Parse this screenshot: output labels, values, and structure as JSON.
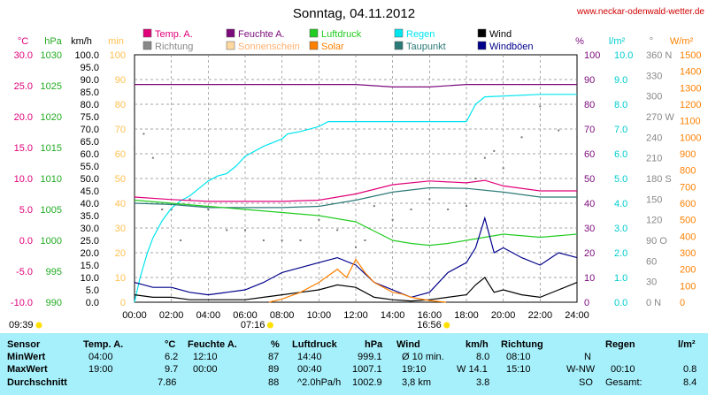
{
  "header": {
    "title": "Sonntag, 04.11.2012",
    "site": "www.neckar-odenwald-wetter.de"
  },
  "legend": [
    {
      "label": "Temp. A.",
      "color": "#e0007a"
    },
    {
      "label": "Feuchte A.",
      "color": "#7b0a7b"
    },
    {
      "label": "Luftdruck",
      "color": "#22cc22"
    },
    {
      "label": "Regen",
      "color": "#00e5ee"
    },
    {
      "label": "Wind",
      "color": "#000000"
    },
    {
      "label": "Richtung",
      "color": "#888888"
    },
    {
      "label": "Sonnenschein",
      "color": "#ffd8a0"
    },
    {
      "label": "Solar",
      "color": "#ff8000"
    },
    {
      "label": "Taupunkt",
      "color": "#2b7a78"
    },
    {
      "label": "Windböen",
      "color": "#00008b"
    }
  ],
  "axes": {
    "temp": {
      "unit": "°C",
      "color": "#e0007a",
      "ticks": [
        "30.0",
        "25.0",
        "20.0",
        "15.0",
        "10.0",
        "5.0",
        "0.0",
        "-5.0",
        "-10.0"
      ]
    },
    "pressure": {
      "unit": "hPa",
      "color": "#22aa22",
      "ticks": [
        "1030",
        "1025",
        "1020",
        "1015",
        "1010",
        "1005",
        "1000",
        "995",
        "990"
      ]
    },
    "wind": {
      "unit": "km/h",
      "color": "#000000",
      "ticks": [
        "100.0",
        "95.0",
        "90.0",
        "85.0",
        "80.0",
        "75.0",
        "70.0",
        "65.0",
        "60.0",
        "55.0",
        "50.0",
        "45.0",
        "40.0",
        "35.0",
        "30.0",
        "25.0",
        "20.0",
        "15.0",
        "10.0",
        "5.0",
        "0.0"
      ]
    },
    "sun": {
      "unit": "min",
      "color": "#ffc050",
      "ticks": [
        "100",
        "90",
        "80",
        "70",
        "60",
        "50",
        "40",
        "30",
        "20",
        "10",
        "0"
      ]
    },
    "humidity": {
      "unit": "%",
      "color": "#7b0a7b",
      "ticks": [
        "100",
        "90",
        "80",
        "70",
        "60",
        "50",
        "40",
        "30",
        "20",
        "10",
        "0"
      ]
    },
    "rain": {
      "unit": "l/m²",
      "color": "#00cccc",
      "ticks": [
        "10.0",
        "9.0",
        "8.0",
        "7.0",
        "6.0",
        "5.0",
        "4.0",
        "3.0",
        "2.0",
        "1.0",
        "0.0"
      ]
    },
    "direction": {
      "unit": "°",
      "color": "#888888",
      "ticks": [
        "360 N",
        "330",
        "300",
        "270 W",
        "240",
        "210",
        "180 S",
        "150",
        "120",
        "90 O",
        "60",
        "30",
        "0 N"
      ]
    },
    "solar": {
      "unit": "W/m²",
      "color": "#ff8000",
      "ticks": [
        "1500",
        "1400",
        "1300",
        "1200",
        "1100",
        "1000",
        "900",
        "800",
        "700",
        "600",
        "500",
        "400",
        "300",
        "200",
        "100",
        "0"
      ]
    },
    "time": {
      "ticks": [
        "00:00",
        "02:00",
        "04:00",
        "06:00",
        "08:00",
        "10:00",
        "12:00",
        "14:00",
        "16:00",
        "18:00",
        "20:00",
        "22:00",
        "24:00"
      ]
    }
  },
  "sun_markers": {
    "dawn": "09:39",
    "sunrise": "07:16",
    "sunset": "16:56"
  },
  "chart_data": {
    "type": "line",
    "x_unit": "hours",
    "xlim": [
      0,
      24
    ],
    "series": [
      {
        "name": "Feuchte A.",
        "axis": "humidity",
        "color": "#7b0a7b",
        "x": [
          0,
          2,
          4,
          6,
          8,
          10,
          12,
          14,
          16,
          18,
          20,
          22,
          24
        ],
        "values": [
          88,
          88,
          88,
          88,
          88,
          88,
          88,
          87,
          87,
          88,
          88,
          88,
          88
        ]
      },
      {
        "name": "Regen",
        "axis": "rain",
        "color": "#00e5ee",
        "x": [
          0,
          0.3,
          0.7,
          1,
          1.5,
          2,
          2.5,
          3,
          3.5,
          4,
          4.5,
          5,
          5.5,
          6,
          7,
          8,
          8.3,
          9,
          10,
          10.5,
          11,
          12,
          14,
          16,
          17,
          18,
          18.5,
          19,
          22,
          24
        ],
        "values": [
          0,
          1.0,
          2.0,
          2.6,
          3.3,
          3.8,
          4.1,
          4.3,
          4.6,
          4.9,
          5.1,
          5.2,
          5.5,
          5.9,
          6.3,
          6.6,
          6.8,
          6.9,
          7.1,
          7.3,
          7.3,
          7.3,
          7.3,
          7.3,
          7.3,
          7.3,
          8.0,
          8.3,
          8.4,
          8.4
        ]
      },
      {
        "name": "Temp. A.",
        "axis": "temp",
        "color": "#e0007a",
        "x": [
          0,
          2,
          4,
          6,
          8,
          10,
          12,
          14,
          16,
          18,
          19,
          20,
          22,
          24
        ],
        "values": [
          7.0,
          6.6,
          6.3,
          6.3,
          6.3,
          6.5,
          7.5,
          9.0,
          9.6,
          9.3,
          9.7,
          8.8,
          8.0,
          8.0
        ]
      },
      {
        "name": "Taupunkt",
        "axis": "temp",
        "color": "#2b7a78",
        "x": [
          0,
          2,
          4,
          6,
          8,
          10,
          12,
          14,
          16,
          18,
          20,
          22,
          24
        ],
        "values": [
          6.0,
          5.8,
          5.3,
          5.3,
          5.3,
          5.5,
          6.5,
          7.8,
          8.5,
          8.4,
          7.8,
          7.0,
          7.0
        ]
      },
      {
        "name": "Luftdruck",
        "axis": "pressure",
        "color": "#22cc22",
        "x": [
          0,
          2,
          4,
          6,
          8,
          10,
          12,
          13,
          14,
          15,
          16,
          17,
          18,
          20,
          22,
          24
        ],
        "values": [
          1006.5,
          1006,
          1005.5,
          1005,
          1004.5,
          1004,
          1003,
          1001.5,
          1000,
          999.5,
          999.2,
          999.5,
          1000,
          1001,
          1000.5,
          1001
        ]
      },
      {
        "name": "Wind",
        "axis": "wind",
        "color": "#000000",
        "x": [
          0,
          1,
          2,
          3,
          4,
          5,
          6,
          7,
          8,
          9,
          10,
          11,
          12,
          13,
          14,
          15,
          16,
          17,
          18,
          18.5,
          19,
          19.5,
          20,
          21,
          22,
          23,
          24
        ],
        "values": [
          3,
          2,
          2,
          1,
          1,
          1,
          1,
          2,
          3,
          4,
          5,
          7,
          6,
          2,
          1,
          0.5,
          1,
          2,
          3,
          7,
          10,
          4,
          5,
          3,
          2,
          5,
          8
        ]
      },
      {
        "name": "Windböen",
        "axis": "wind",
        "color": "#00008b",
        "x": [
          0,
          1,
          2,
          3,
          4,
          5,
          6,
          7,
          8,
          9,
          10,
          11,
          12,
          13,
          14,
          15,
          16,
          17,
          18,
          18.5,
          19,
          19.5,
          20,
          21,
          22,
          23,
          24
        ],
        "values": [
          8,
          6,
          6,
          4,
          3,
          4,
          5,
          8,
          12,
          14,
          16,
          18,
          15,
          8,
          5,
          2,
          4,
          12,
          16,
          22,
          34,
          20,
          22,
          18,
          15,
          20,
          18
        ]
      },
      {
        "name": "Solar",
        "axis": "solar",
        "color": "#ff8000",
        "x": [
          7.3,
          8,
          9,
          10,
          11,
          11.5,
          12,
          12.5,
          13,
          13.5,
          14,
          14.5,
          15,
          16,
          16.9
        ],
        "values": [
          0,
          20,
          60,
          120,
          200,
          150,
          260,
          180,
          120,
          90,
          60,
          50,
          30,
          10,
          0
        ]
      }
    ],
    "direction_points": {
      "x": [
        0,
        0.5,
        1,
        1.5,
        2,
        2.5,
        3,
        4,
        5,
        6,
        7,
        8,
        9,
        10,
        11,
        12,
        12.5,
        13,
        14,
        15,
        16,
        17,
        18,
        18.5,
        19,
        19.5,
        20,
        21,
        22,
        23,
        24
      ],
      "values": [
        225,
        245,
        210,
        135,
        135,
        90,
        150,
        135,
        105,
        105,
        90,
        90,
        90,
        120,
        105,
        80,
        90,
        140,
        120,
        135,
        150,
        135,
        140,
        180,
        210,
        220,
        195,
        240,
        285,
        250,
        240
      ]
    },
    "grid": true
  },
  "stats": {
    "header": {
      "sensor": "Sensor",
      "temp": "Temp. A.",
      "temp_unit": "°C",
      "hum": "Feuchte A.",
      "hum_unit": "%",
      "press": "Luftdruck",
      "press_unit": "hPa",
      "wind": "Wind",
      "wind_unit": "km/h",
      "dir": "Richtung",
      "rain": "Regen",
      "rain_unit": "l/m²"
    },
    "min": {
      "label": "MinWert",
      "temp_time": "04:00",
      "temp_val": "6.2",
      "hum_time": "12:10",
      "hum_val": "87",
      "press_time": "14:40",
      "press_val": "999.1",
      "wind_label": "Ø 10 min.",
      "wind_val": "8.0",
      "dir_time": "08:10",
      "dir_val": "N",
      "rain_time": "",
      "rain_val": ""
    },
    "max": {
      "label": "MaxWert",
      "temp_time": "19:00",
      "temp_val": "9.7",
      "hum_time": "00:00",
      "hum_val": "89",
      "press_time": "00:40",
      "press_val": "1007.1",
      "wind_label": "19:10",
      "wind_mid": "W 14.1",
      "dir_time": "15:10",
      "dir_val": "W-NW",
      "rain_time": "00:10",
      "rain_val": "0.8"
    },
    "avg": {
      "label": "Durchschnitt",
      "temp_val": "7.86",
      "hum_val": "88",
      "press_label": "^2.0hPa/h",
      "press_val": "1002.9",
      "wind_label": "3,8 km",
      "wind_val": "3.8",
      "dir_val": "SO",
      "rain_label": "Gesamt:",
      "rain_val": "8.4"
    }
  }
}
